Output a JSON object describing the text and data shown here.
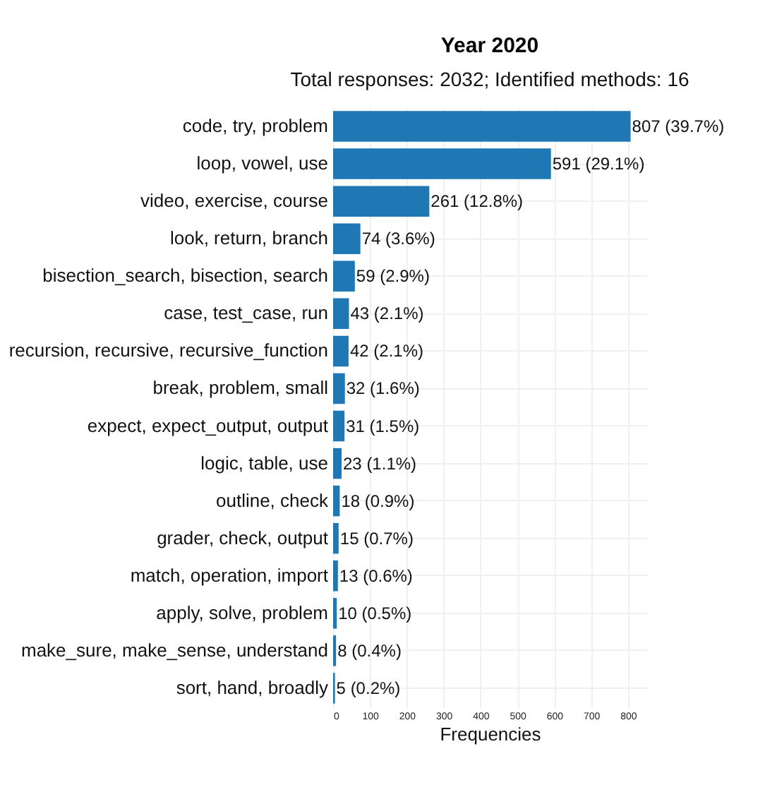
{
  "chart_data": {
    "type": "bar",
    "orientation": "horizontal",
    "title": "Year 2020",
    "subtitle": "Total responses: 2032; Identified methods: 16",
    "xlabel": "Frequencies",
    "categories": [
      "code, try, problem",
      "loop, vowel, use",
      "video, exercise, course",
      "look, return, branch",
      "bisection_search, bisection, search",
      "case, test_case, run",
      "recursion, recursive, recursive_function",
      "break, problem, small",
      "expect, expect_output, output",
      "logic, table, use",
      "outline, check",
      "grader, check, output",
      "match, operation, import",
      "apply, solve, problem",
      "make_sure, make_sense, understand",
      "sort, hand, broadly"
    ],
    "values": [
      807,
      591,
      261,
      74,
      59,
      43,
      42,
      32,
      31,
      23,
      18,
      15,
      13,
      10,
      8,
      5
    ],
    "value_labels": [
      "807 (39.7%)",
      "591 (29.1%)",
      "261 (12.8%)",
      "74 (3.6%)",
      "59 (2.9%)",
      "43 (2.1%)",
      "42 (2.1%)",
      "32 (1.6%)",
      "31 (1.5%)",
      "23 (1.1%)",
      "18 (0.9%)",
      "15 (0.7%)",
      "13 (0.6%)",
      "10 (0.5%)",
      "8 (0.4%)",
      "5 (0.2%)"
    ],
    "color": "#1f77b4",
    "xlim": [
      0,
      850
    ],
    "xticks": [
      0,
      100,
      200,
      300,
      400,
      500,
      600,
      700,
      800
    ],
    "grid": true
  }
}
